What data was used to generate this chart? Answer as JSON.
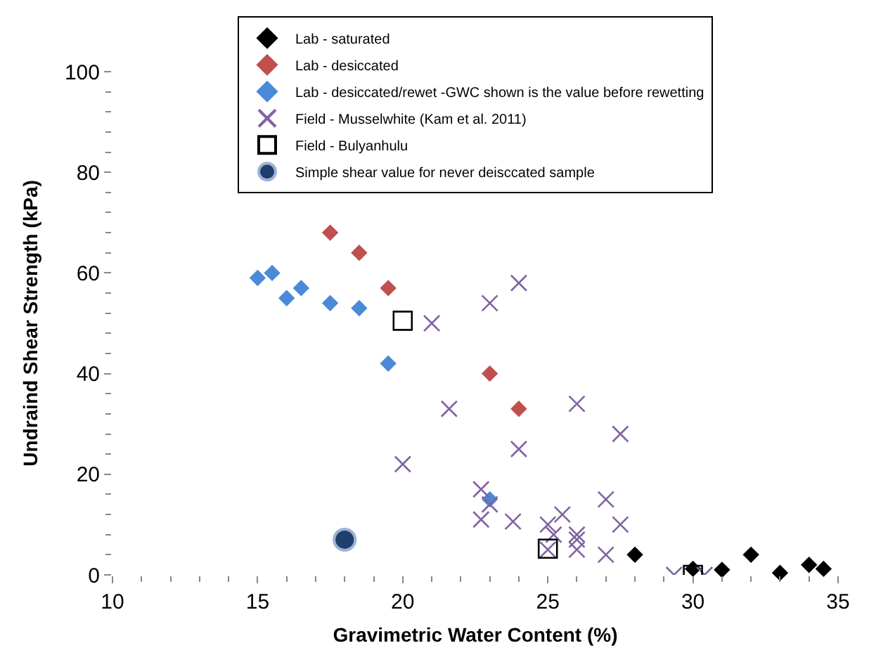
{
  "chart_data": {
    "type": "scatter",
    "xlabel": "Gravimetric Water Content (%)",
    "ylabel": "Undraind Shear Strength (kPa)",
    "xlim": [
      10,
      35
    ],
    "xticks": [
      10,
      15,
      20,
      25,
      30,
      35
    ],
    "ylim": [
      0,
      100
    ],
    "yticks": [
      0,
      20,
      40,
      60,
      80,
      100
    ],
    "legend": "top",
    "series": [
      {
        "name": "Lab - saturated",
        "color": "#000000",
        "marker": "diamond",
        "x": [
          28,
          30,
          31,
          32,
          33,
          34,
          34.5
        ],
        "values": [
          4,
          1.2,
          1,
          4,
          0.4,
          2,
          1.2
        ]
      },
      {
        "name": "Lab - desiccated",
        "color": "#c0504d",
        "marker": "diamond",
        "x": [
          17.5,
          18.5,
          19.5,
          23,
          24
        ],
        "values": [
          68,
          64,
          57,
          40,
          33
        ]
      },
      {
        "name": "Lab - desiccated/rewet -GWC shown is the value before rewetting",
        "color": "#4a8ad8",
        "marker": "diamond",
        "x": [
          15,
          15.5,
          16,
          16.5,
          17.5,
          18.5,
          19.5,
          23
        ],
        "values": [
          59,
          60,
          55,
          57,
          54,
          53,
          42,
          15
        ]
      },
      {
        "name": "Field - Musselwhite (Kam et al. 2011)",
        "color": "#8064a2",
        "marker": "cross",
        "x": [
          21,
          21.6,
          20,
          22.7,
          23,
          22.7,
          23,
          24,
          26,
          27.5,
          24,
          23.8,
          25,
          25.5,
          25.2,
          25,
          26,
          26,
          26,
          27,
          27.5,
          27,
          29.35,
          30.4
        ],
        "values": [
          50,
          33,
          22,
          17,
          14,
          11,
          54,
          58,
          34,
          28,
          25,
          10.6,
          10,
          12,
          8,
          5,
          8,
          7,
          5,
          15,
          10,
          4,
          0,
          0
        ]
      },
      {
        "name": "Field - Bulyanhulu",
        "color": "#000000",
        "marker": "square",
        "x": [
          20,
          25,
          30
        ],
        "values": [
          50.5,
          5.2,
          0
        ]
      },
      {
        "name": "Simple shear value for never deisccated sample",
        "color": "#1f3f6e",
        "marker": "circle",
        "x": [
          18
        ],
        "values": [
          7
        ]
      }
    ]
  }
}
